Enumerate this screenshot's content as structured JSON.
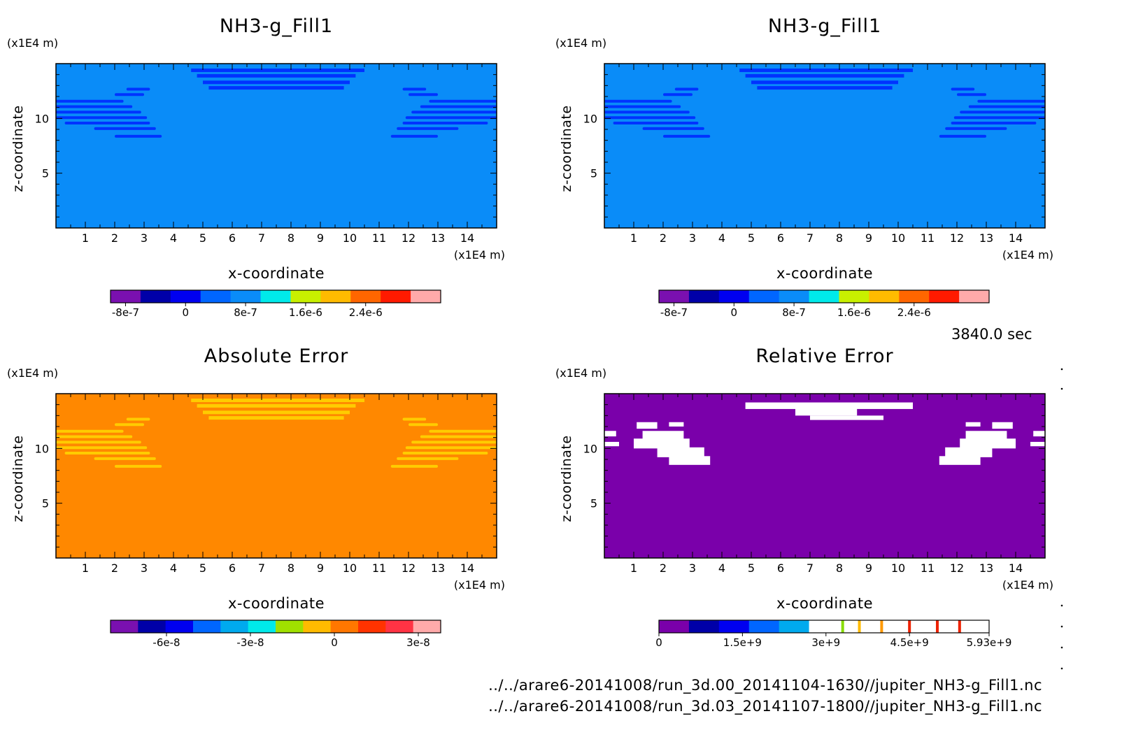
{
  "chart_data": [
    {
      "type": "heatmap",
      "title": "NH3-g_Fill1",
      "xlabel": "x-coordinate",
      "ylabel": "z-coordinate",
      "x_unit": "(x1E4 m)",
      "z_unit": "(x1E4 m)",
      "xlim": [
        0,
        15
      ],
      "zlim": [
        0,
        15
      ],
      "x_ticks": [
        "1",
        "2",
        "3",
        "4",
        "5",
        "6",
        "7",
        "8",
        "9",
        "10",
        "11",
        "12",
        "13",
        "14"
      ],
      "z_ticks": [
        "5",
        "10"
      ],
      "background_color": "#0a8cf8",
      "feature_color": "#0033ff",
      "colorbar": {
        "colors": [
          "#7a10b0",
          "#0000a8",
          "#0000f0",
          "#0066ff",
          "#0a8cf8",
          "#00eaea",
          "#c8f000",
          "#ffbb00",
          "#ff6600",
          "#ff1a00",
          "#ffaaaa"
        ],
        "tick_labels": [
          "-8e-7",
          "0",
          "8e-7",
          "1.6e-6",
          "2.4e-6"
        ],
        "tick_values": [
          -8e-07,
          0,
          8e-07,
          1.6e-06,
          2.4e-06
        ],
        "range": [
          -1e-06,
          3.4e-06
        ]
      }
    },
    {
      "type": "heatmap",
      "title": "NH3-g_Fill1",
      "xlabel": "x-coordinate",
      "ylabel": "z-coordinate",
      "x_unit": "(x1E4 m)",
      "z_unit": "(x1E4 m)",
      "xlim": [
        0,
        15
      ],
      "zlim": [
        0,
        15
      ],
      "x_ticks": [
        "1",
        "2",
        "3",
        "4",
        "5",
        "6",
        "7",
        "8",
        "9",
        "10",
        "11",
        "12",
        "13",
        "14"
      ],
      "z_ticks": [
        "5",
        "10"
      ],
      "background_color": "#0a8cf8",
      "feature_color": "#0033ff",
      "colorbar": {
        "colors": [
          "#7a10b0",
          "#0000a8",
          "#0000f0",
          "#0066ff",
          "#0a8cf8",
          "#00eaea",
          "#c8f000",
          "#ffbb00",
          "#ff6600",
          "#ff1a00",
          "#ffaaaa"
        ],
        "tick_labels": [
          "-8e-7",
          "0",
          "8e-7",
          "1.6e-6",
          "2.4e-6"
        ],
        "tick_values": [
          -8e-07,
          0,
          8e-07,
          1.6e-06,
          2.4e-06
        ],
        "range": [
          -1e-06,
          3.4e-06
        ]
      }
    },
    {
      "type": "heatmap",
      "title": "Absolute Error",
      "xlabel": "x-coordinate",
      "ylabel": "z-coordinate",
      "x_unit": "(x1E4 m)",
      "z_unit": "(x1E4 m)",
      "xlim": [
        0,
        15
      ],
      "zlim": [
        0,
        15
      ],
      "x_ticks": [
        "1",
        "2",
        "3",
        "4",
        "5",
        "6",
        "7",
        "8",
        "9",
        "10",
        "11",
        "12",
        "13",
        "14"
      ],
      "z_ticks": [
        "5",
        "10"
      ],
      "background_color": "#ff8800",
      "feature_color": "#ffcc00",
      "colorbar": {
        "colors": [
          "#7a10b0",
          "#0000a8",
          "#0000f0",
          "#0066ff",
          "#00aaee",
          "#00eaea",
          "#a0e000",
          "#ffbb00",
          "#ff7700",
          "#ff3300",
          "#ff3344",
          "#ffaaaa"
        ],
        "tick_labels": [
          "-6e-8",
          "-3e-8",
          "0",
          "3e-8"
        ],
        "tick_values": [
          -6e-08,
          -3e-08,
          0,
          3e-08
        ],
        "range": [
          -8e-08,
          3.8e-08
        ]
      }
    },
    {
      "type": "heatmap",
      "title": "Relative Error",
      "xlabel": "x-coordinate",
      "ylabel": "z-coordinate",
      "x_unit": "(x1E4 m)",
      "z_unit": "(x1E4 m)",
      "xlim": [
        0,
        15
      ],
      "zlim": [
        0,
        15
      ],
      "x_ticks": [
        "1",
        "2",
        "3",
        "4",
        "5",
        "6",
        "7",
        "8",
        "9",
        "10",
        "11",
        "12",
        "13",
        "14"
      ],
      "z_ticks": [
        "5",
        "10"
      ],
      "background_color": "#7a00aa",
      "feature_color": "#ffffff",
      "colorbar": {
        "colors": [
          "#7a00aa",
          "#0000a8",
          "#0000f0",
          "#0066ff",
          "#00aaee",
          "#ffffff",
          "#ffffff",
          "#ffffff",
          "#ffffff",
          "#ffffff",
          "#ffffff"
        ],
        "markers": [
          {
            "value": 3300000000.0,
            "color": "#88dd00"
          },
          {
            "value": 3600000000.0,
            "color": "#ffbb00"
          },
          {
            "value": 4000000000.0,
            "color": "#ff9900"
          },
          {
            "value": 4500000000.0,
            "color": "#ee2200"
          },
          {
            "value": 5000000000.0,
            "color": "#ee2200"
          },
          {
            "value": 5400000000.0,
            "color": "#ee2200"
          }
        ],
        "tick_labels": [
          "0",
          "1.5e+9",
          "3e+9",
          "4.5e+9",
          "5.93e+9"
        ],
        "tick_values": [
          0,
          1500000000.0,
          3000000000.0,
          4500000000.0,
          5930000000.0
        ],
        "range": [
          0,
          5930000000.0
        ]
      }
    }
  ],
  "timestamp": "3840.0 sec",
  "files": [
    "../../arare6-20141008/run_3d.00_20141104-1630//jupiter_NH3-g_Fill1.nc",
    "../../arare6-20141008/run_3d.03_20141107-1800//jupiter_NH3-g_Fill1.nc"
  ]
}
